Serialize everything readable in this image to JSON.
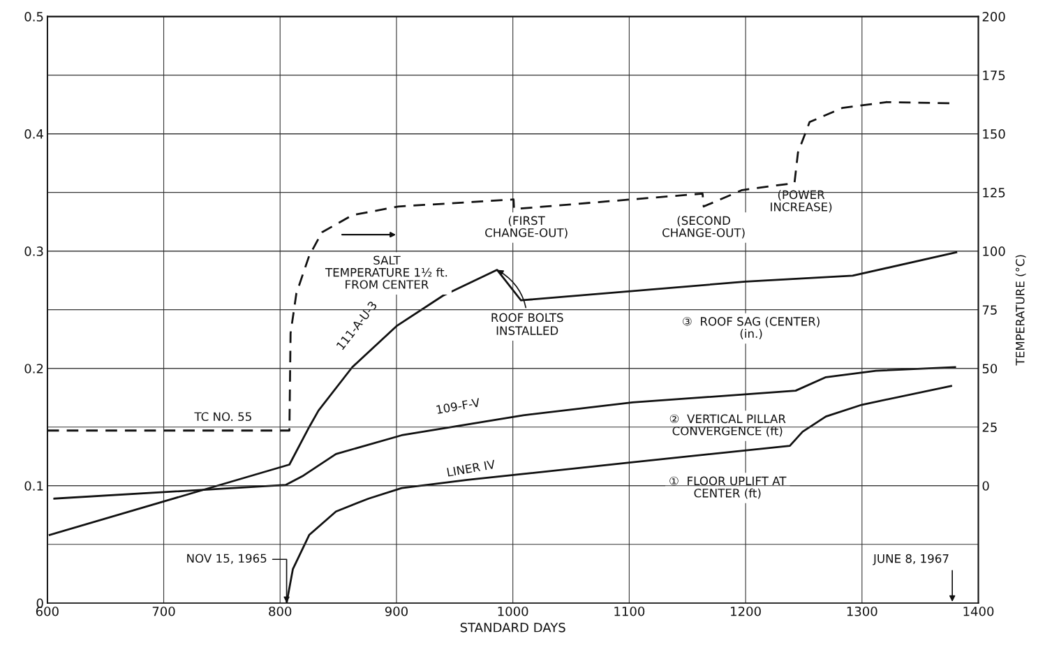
{
  "chart_data": {
    "type": "line",
    "xlabel": "STANDARD DAYS",
    "y2label": "TEMPERATURE (°C)",
    "xlim": [
      600,
      1400
    ],
    "xticks": [
      600,
      700,
      800,
      900,
      1000,
      {
        "value": 1100,
        "label": "1100"
      },
      1200,
      1300,
      1400
    ],
    "ylim": [
      0,
      0.5
    ],
    "yticks": [
      0,
      0.1,
      0.2,
      0.3,
      0.4,
      0.5
    ],
    "y2lim": [
      -50,
      200
    ],
    "y2ticks": [
      {
        "value": -25,
        "label": null
      },
      0,
      25,
      50,
      75,
      100,
      125,
      150,
      175,
      200
    ],
    "grid": true,
    "marker": "none",
    "series": [
      {
        "color": "#111111",
        "line_style": "solid",
        "x": [
          805.6,
          811,
          825,
          848,
          876,
          904.5,
          961,
          1009,
          1103,
          1238,
          1249,
          1269,
          1300,
          1376.6
        ],
        "values": [
          0.0,
          0.029,
          0.058,
          0.078,
          0.089,
          0.098,
          0.105,
          0.11,
          0.12,
          0.134,
          0.146,
          0.159,
          0.169,
          0.185
        ]
      },
      {
        "color": "#111111",
        "line_style": "solid",
        "x": [
          606,
          805,
          819,
          848,
          904.5,
          1009,
          1103,
          1243,
          1269,
          1312,
          1380
        ],
        "values": [
          0.089,
          0.1007,
          0.108,
          0.127,
          0.143,
          0.16,
          0.171,
          0.181,
          0.1925,
          0.198,
          0.201
        ]
      },
      {
        "color": "#111111",
        "line_style": "solid",
        "x": [
          602,
          808,
          825,
          833,
          862,
          900,
          940,
          986.5,
          1007,
          1200,
          1292,
          1381
        ],
        "values": [
          0.058,
          0.118,
          0.15,
          0.164,
          0.201,
          0.236,
          0.262,
          0.284,
          0.258,
          0.274,
          0.279,
          0.299
        ]
      },
      {
        "color": "#111111",
        "line_style": "dashed",
        "axis": "y2",
        "x": [
          600,
          808,
          809,
          814,
          825,
          836,
          862,
          901.6,
          1000.6,
          1001,
          1003,
          1163,
          1164,
          1197,
          1242,
          1245,
          1255,
          1283,
          1321,
          1376.6
        ],
        "values": [
          23.5,
          23.5,
          65,
          82,
          98,
          108,
          115.3,
          119,
          122,
          118,
          118,
          124.5,
          119,
          126,
          129,
          142,
          155,
          161,
          163.5,
          163
        ]
      }
    ],
    "annotations": [
      "TC NO. 55",
      "111-A-U-3",
      "109-F-V",
      "LINER IV",
      "SALT\nTEMPERATURE 1½ ft.\nFROM CENTER",
      "(FIRST\nCHANGE-OUT)",
      "(SECOND\nCHANGE-OUT)",
      "(POWER\nINCREASE)",
      {
        "text": "ROOF BOLTS\nINSTALLED",
        "x": 986.5,
        "y": 0.284
      },
      "③  ROOF SAG (CENTER)\n(in.)",
      "②  VERTICAL PILLAR\nCONVERGENCE (ft)",
      "①  FLOOR UPLIFT AT\nCENTER (ft)",
      {
        "text": "NOV 15, 1965",
        "x": 805.6,
        "y": 0.0
      },
      "JUNE 8, 1967"
    ]
  }
}
